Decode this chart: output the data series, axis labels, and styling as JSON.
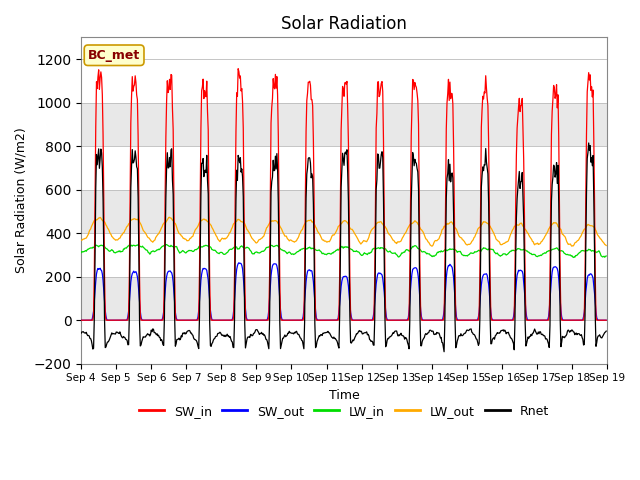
{
  "title": "Solar Radiation",
  "xlabel": "Time",
  "ylabel": "Solar Radiation (W/m2)",
  "ylim": [
    -200,
    1300
  ],
  "yticks": [
    -200,
    0,
    200,
    400,
    600,
    800,
    1000,
    1200
  ],
  "start_day": 4,
  "end_day": 19,
  "num_days": 15,
  "dt_hours": 0.5,
  "colors": {
    "SW_in": "#ff0000",
    "SW_out": "#0000ff",
    "LW_in": "#00dd00",
    "LW_out": "#ffaa00",
    "Rnet": "#000000"
  },
  "legend_label": "BC_met",
  "legend_box_facecolor": "#ffffcc",
  "legend_box_edgecolor": "#cc9900",
  "grid_color": "#bbbbbb",
  "band_color": "#e8e8e8"
}
